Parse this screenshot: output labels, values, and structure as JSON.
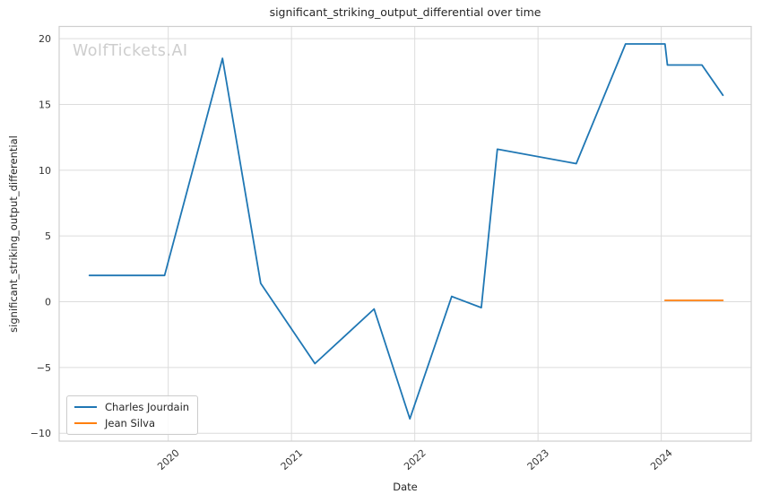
{
  "watermark": "WolfTickets.AI",
  "chart_data": {
    "type": "line",
    "title": "significant_striking_output_differential over time",
    "xlabel": "Date",
    "ylabel": "significant_striking_output_differential",
    "xlim": [
      2019.115,
      2024.73
    ],
    "ylim": [
      -10.6,
      20.93
    ],
    "x_ticks": [
      2020,
      2021,
      2022,
      2023,
      2024
    ],
    "y_ticks": [
      -10,
      -5,
      0,
      5,
      10,
      15,
      20
    ],
    "grid": true,
    "grid_color": "#dcdcdc",
    "frame_color": "#cfcfcf",
    "legend_position": "lower left",
    "series": [
      {
        "name": "Charles Jourdain",
        "color": "#1f77b4",
        "x": [
          2019.36,
          2019.97,
          2020.44,
          2020.75,
          2021.19,
          2021.67,
          2021.96,
          2022.3,
          2022.54,
          2022.67,
          2023.31,
          2023.71,
          2024.03,
          2024.05,
          2024.33,
          2024.5
        ],
        "y": [
          2.0,
          2.0,
          18.5,
          1.4,
          -4.7,
          -0.55,
          -8.9,
          0.4,
          -0.45,
          11.6,
          10.5,
          19.6,
          19.6,
          18.0,
          18.0,
          15.7
        ]
      },
      {
        "name": "Jean Silva",
        "color": "#ff7f0e",
        "x": [
          2024.03,
          2024.5
        ],
        "y": [
          0.1,
          0.1
        ]
      }
    ]
  },
  "legend": {
    "items": [
      {
        "label": "Charles Jourdain",
        "color": "#1f77b4"
      },
      {
        "label": "Jean Silva",
        "color": "#ff7f0e"
      }
    ]
  }
}
